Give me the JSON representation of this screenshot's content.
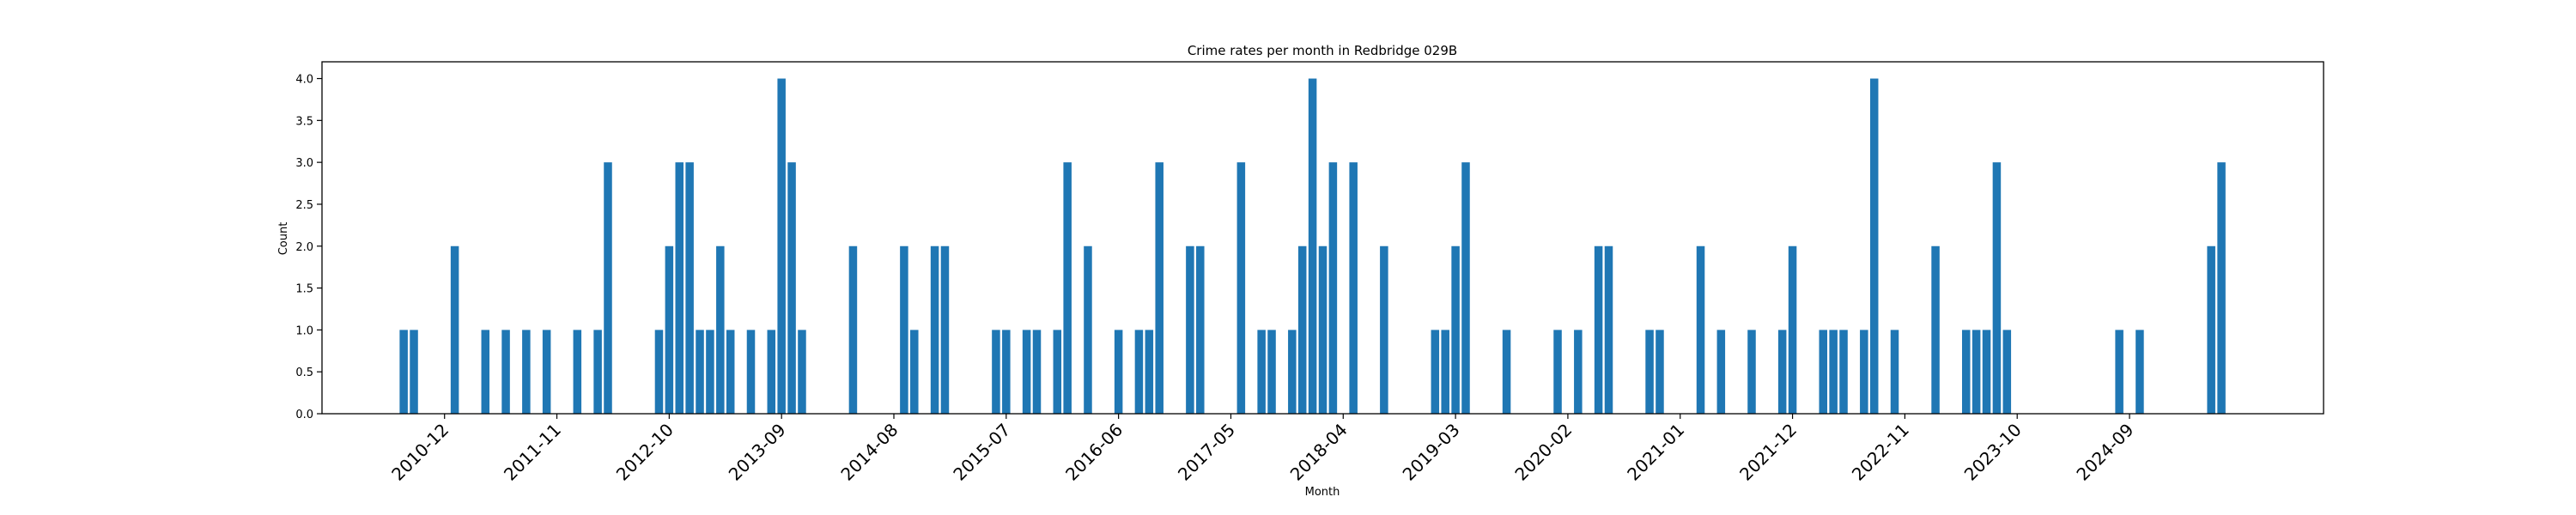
{
  "chart_data": {
    "type": "bar",
    "title": "Crime rates per month in Redbridge 029B",
    "xlabel": "Month",
    "ylabel": "Count",
    "ylim": [
      0,
      4.2
    ],
    "yticks": [
      0,
      0.5,
      1,
      1.5,
      2,
      2.5,
      3,
      3.5,
      4
    ],
    "ytick_labels": [
      "0.0",
      "0.5",
      "1.0",
      "1.5",
      "2.0",
      "2.5",
      "3.0",
      "3.5",
      "4.0"
    ],
    "xlim": [
      "2009-12",
      "2026-04"
    ],
    "xticks": [
      "2010-12",
      "2011-11",
      "2012-10",
      "2013-09",
      "2014-08",
      "2015-07",
      "2016-06",
      "2017-05",
      "2018-04",
      "2019-03",
      "2020-02",
      "2021-01",
      "2021-12",
      "2022-11",
      "2023-10",
      "2024-09"
    ],
    "grid": false,
    "bar_color": "#1f77b4",
    "x": [
      "2010-08",
      "2010-09",
      "2011-01",
      "2011-04",
      "2011-06",
      "2011-08",
      "2011-10",
      "2012-01",
      "2012-03",
      "2012-04",
      "2012-09",
      "2012-10",
      "2012-11",
      "2012-12",
      "2013-01",
      "2013-02",
      "2013-03",
      "2013-04",
      "2013-06",
      "2013-08",
      "2013-09",
      "2013-10",
      "2013-11",
      "2014-04",
      "2014-09",
      "2014-10",
      "2014-12",
      "2015-01",
      "2015-06",
      "2015-07",
      "2015-09",
      "2015-10",
      "2015-12",
      "2016-01",
      "2016-03",
      "2016-06",
      "2016-08",
      "2016-09",
      "2016-10",
      "2017-01",
      "2017-02",
      "2017-06",
      "2017-08",
      "2017-09",
      "2017-11",
      "2017-12",
      "2018-01",
      "2018-02",
      "2018-03",
      "2018-05",
      "2018-08",
      "2019-01",
      "2019-02",
      "2019-03",
      "2019-04",
      "2019-08",
      "2020-01",
      "2020-03",
      "2020-05",
      "2020-06",
      "2020-10",
      "2020-11",
      "2021-03",
      "2021-05",
      "2021-08",
      "2021-11",
      "2021-12",
      "2022-03",
      "2022-04",
      "2022-05",
      "2022-07",
      "2022-08",
      "2022-10",
      "2023-02",
      "2023-05",
      "2023-06",
      "2023-07",
      "2023-08",
      "2023-09",
      "2024-08",
      "2024-10",
      "2025-05",
      "2025-06"
    ],
    "values": [
      1,
      1,
      2,
      1,
      1,
      1,
      1,
      1,
      1,
      3,
      1,
      2,
      3,
      3,
      1,
      1,
      2,
      1,
      1,
      1,
      4,
      3,
      1,
      2,
      2,
      1,
      2,
      2,
      1,
      1,
      1,
      1,
      1,
      3,
      2,
      1,
      1,
      1,
      3,
      2,
      2,
      3,
      1,
      1,
      1,
      2,
      4,
      2,
      3,
      3,
      2,
      1,
      1,
      2,
      3,
      1,
      1,
      1,
      2,
      2,
      1,
      1,
      2,
      1,
      1,
      1,
      2,
      1,
      1,
      1,
      1,
      4,
      1,
      2,
      1,
      1,
      1,
      3,
      1,
      1,
      1,
      2,
      3
    ]
  }
}
